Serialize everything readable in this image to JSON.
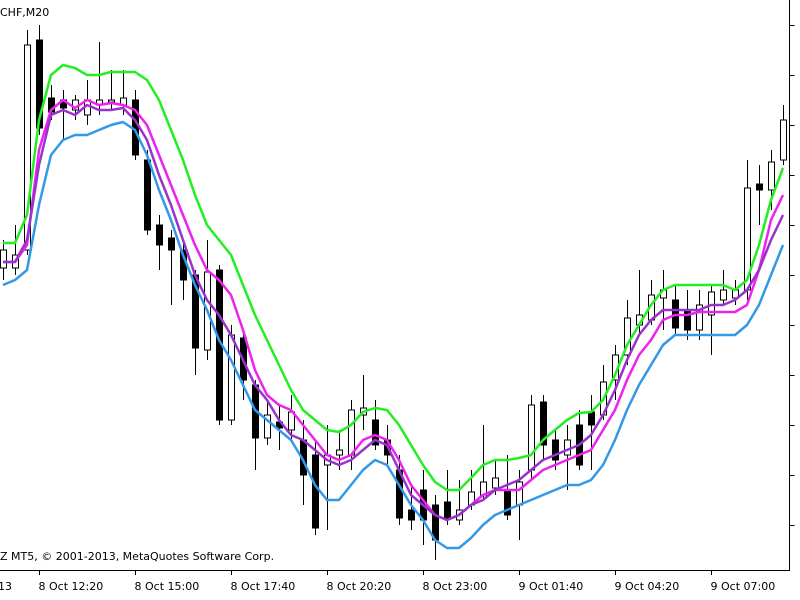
{
  "chart_data": {
    "type": "candlestick",
    "title": "CHF,M20",
    "footer": "Z MT5, © 2001-2013, MetaQuotes Software Corp.",
    "x_label_cut": "13",
    "categories": [
      null,
      null,
      null,
      "8 Oct 12:20",
      null,
      null,
      null,
      null,
      null,
      null,
      null,
      "8 Oct 15:00",
      null,
      null,
      null,
      null,
      null,
      null,
      null,
      "8 Oct 17:40",
      null,
      null,
      null,
      null,
      null,
      null,
      null,
      "8 Oct 20:20",
      null,
      null,
      null,
      null,
      null,
      null,
      null,
      "8 Oct 23:00",
      null,
      null,
      null,
      null,
      null,
      null,
      null,
      "9 Oct 01:40",
      null,
      null,
      null,
      null,
      null,
      null,
      null,
      "9 Oct 04:20",
      null,
      null,
      null,
      null,
      null,
      null,
      null,
      "9 Oct 07:00",
      null,
      null,
      null,
      null,
      null,
      null
    ],
    "open": [
      332,
      332,
      350,
      560,
      502,
      500,
      490,
      485,
      495,
      498,
      495,
      500,
      440,
      375,
      362,
      350,
      325,
      250,
      330,
      180,
      262,
      215,
      162,
      178,
      170,
      160,
      145,
      135,
      145,
      145,
      185,
      180,
      160,
      130,
      90,
      110,
      95,
      98,
      80,
      95,
      105,
      112,
      110,
      95,
      130,
      198,
      160,
      145,
      175,
      188,
      185,
      220,
      245,
      275,
      280,
      302,
      300,
      290,
      270,
      285,
      300,
      302,
      310,
      416,
      410,
      440
    ],
    "high": [
      360,
      375,
      570,
      575,
      515,
      510,
      505,
      520,
      558,
      530,
      530,
      510,
      450,
      385,
      370,
      360,
      330,
      360,
      335,
      275,
      270,
      220,
      200,
      195,
      205,
      180,
      160,
      175,
      170,
      200,
      225,
      200,
      175,
      145,
      115,
      130,
      105,
      130,
      120,
      130,
      175,
      140,
      145,
      130,
      205,
      205,
      170,
      175,
      190,
      205,
      235,
      255,
      300,
      330,
      320,
      330,
      315,
      310,
      310,
      315,
      330,
      320,
      440,
      435,
      450,
      495
    ],
    "low": [
      320,
      325,
      345,
      465,
      480,
      460,
      480,
      475,
      485,
      490,
      485,
      440,
      365,
      330,
      295,
      300,
      225,
      240,
      175,
      175,
      200,
      130,
      155,
      150,
      160,
      95,
      65,
      70,
      130,
      130,
      170,
      150,
      135,
      75,
      70,
      55,
      40,
      75,
      75,
      90,
      100,
      105,
      80,
      60,
      120,
      140,
      130,
      110,
      130,
      130,
      180,
      200,
      235,
      265,
      275,
      270,
      265,
      260,
      260,
      245,
      295,
      295,
      300,
      375,
      390,
      435
    ],
    "close": [
      350,
      345,
      555,
      472,
      488,
      492,
      500,
      500,
      500,
      500,
      502,
      445,
      370,
      355,
      350,
      320,
      252,
      328,
      180,
      265,
      220,
      162,
      185,
      172,
      188,
      125,
      72,
      145,
      150,
      190,
      192,
      155,
      145,
      82,
      80,
      80,
      60,
      82,
      90,
      108,
      118,
      122,
      85,
      118,
      195,
      155,
      140,
      160,
      135,
      175,
      218,
      245,
      282,
      285,
      305,
      310,
      272,
      270,
      295,
      308,
      310,
      310,
      412,
      410,
      438,
      480
    ],
    "up_color": "#ffffff",
    "down_color": "#000000",
    "series": [
      {
        "color": "#22ee22",
        "values": [
          357,
          357,
          385,
          480,
          525,
          535,
          532,
          525,
          525,
          528,
          528,
          528,
          520,
          500,
          470,
          440,
          405,
          375,
          360,
          345,
          315,
          285,
          260,
          235,
          210,
          190,
          180,
          170,
          168,
          175,
          188,
          192,
          190,
          175,
          155,
          135,
          118,
          110,
          110,
          122,
          135,
          140,
          140,
          142,
          145,
          160,
          170,
          180,
          187,
          188,
          200,
          225,
          255,
          275,
          295,
          310,
          315,
          315,
          315,
          315,
          315,
          310,
          320,
          355,
          400,
          432
        ]
      },
      {
        "color": "#ee22ee",
        "values": [
          338,
          338,
          355,
          450,
          490,
          500,
          492,
          500,
          495,
          497,
          495,
          490,
          475,
          445,
          415,
          385,
          355,
          330,
          320,
          305,
          270,
          230,
          205,
          195,
          190,
          175,
          160,
          145,
          140,
          145,
          160,
          165,
          160,
          140,
          115,
          100,
          85,
          80,
          85,
          95,
          105,
          110,
          110,
          110,
          120,
          130,
          135,
          140,
          145,
          150,
          170,
          190,
          220,
          245,
          260,
          280,
          285,
          285,
          288,
          288,
          288,
          288,
          295,
          330,
          380,
          405
        ]
      },
      {
        "color": "#9933cc",
        "values": [
          338,
          338,
          360,
          435,
          485,
          490,
          485,
          495,
          490,
          490,
          492,
          480,
          460,
          425,
          395,
          360,
          325,
          300,
          285,
          265,
          240,
          215,
          200,
          180,
          165,
          160,
          150,
          140,
          135,
          140,
          150,
          160,
          155,
          130,
          105,
          95,
          85,
          80,
          85,
          95,
          100,
          110,
          115,
          120,
          130,
          140,
          145,
          150,
          155,
          165,
          185,
          210,
          240,
          265,
          280,
          290,
          290,
          290,
          290,
          295,
          295,
          300,
          310,
          330,
          360,
          385
        ]
      },
      {
        "color": "#3399e6",
        "values": [
          315,
          320,
          330,
          395,
          445,
          460,
          465,
          465,
          470,
          475,
          478,
          470,
          445,
          410,
          380,
          345,
          315,
          290,
          260,
          240,
          215,
          190,
          180,
          170,
          160,
          140,
          115,
          100,
          100,
          115,
          130,
          140,
          135,
          115,
          95,
          80,
          60,
          52,
          52,
          62,
          75,
          85,
          90,
          95,
          100,
          105,
          110,
          115,
          115,
          120,
          135,
          160,
          190,
          215,
          235,
          255,
          265,
          265,
          265,
          265,
          265,
          265,
          275,
          295,
          325,
          355
        ]
      }
    ],
    "ylim": [
      30,
      600
    ],
    "yticks": [
      75,
      125,
      175,
      225,
      275,
      325,
      375,
      425,
      475,
      525,
      575
    ]
  }
}
